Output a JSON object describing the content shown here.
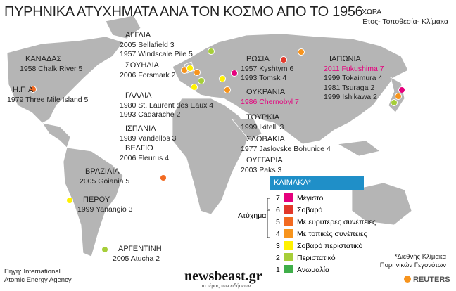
{
  "header": {
    "title": "ΠΥΡΗΝΙΚΑ ΑΤΥΧΗΜΑΤΑ ΑΝΑ ΤΟΝ ΚΟΣΜΟ ΑΠΟ ΤΟ 1956",
    "key": [
      "ΧΩΡΑ",
      "Έτος- Τοποθεσία- Κλίμακα"
    ]
  },
  "countries": [
    {
      "name": "ΚΑΝΑΔΑΣ",
      "events": [
        "1958 Chalk River 5"
      ]
    },
    {
      "name": "Η.Π.Α.",
      "events": [
        "1979 Three Mile Island 5"
      ]
    },
    {
      "name": "ΑΓΓΛΙΑ",
      "events": [
        "2005 Sellafield 3",
        "1957 Windscale Pile 5"
      ]
    },
    {
      "name": "ΣΟΥΗΔΙΑ",
      "events": [
        "2006 Forsmark 2"
      ]
    },
    {
      "name": "ΓΑΛΛΙΑ",
      "events": [
        "1980 St. Laurent des Eaux 4",
        "1993 Cadarache 2"
      ]
    },
    {
      "name": "ΙΣΠΑΝΙΑ",
      "events": [
        "1989 Vandellos 3"
      ]
    },
    {
      "name": "ΒΕΛΓΙΟ",
      "events": [
        "2006 Fleurus 4"
      ]
    },
    {
      "name": "ΡΩΣΙΑ",
      "events": [
        "1957 Kyshtym 6",
        "1993 Tomsk 4"
      ]
    },
    {
      "name": "ΟΥΚΡΑΝΙΑ",
      "events": [
        "1986 Chernobyl 7"
      ]
    },
    {
      "name": "ΤΟΥΡΚΙΑ",
      "events": [
        "1999 Ikitelli 3"
      ]
    },
    {
      "name": "ΣΛΟΒΑΚΙΑ",
      "events": [
        "1977 Jaslovske Bohunice 4"
      ]
    },
    {
      "name": "ΟΥΓΓΑΡΙΑ",
      "events": [
        "2003 Paks 3"
      ]
    },
    {
      "name": "ΙΑΠΩΝΙΑ",
      "events": [
        "2011 Fukushima 7",
        "1999 Tokaimura 4",
        "1981 Tsuraga 2",
        "1999 Ishikawa 2"
      ]
    },
    {
      "name": "ΒΡΑΖΙΛΙΑ",
      "events": [
        "2005 Goiania 5"
      ]
    },
    {
      "name": "ΠΕΡΟΥ",
      "events": [
        "1999 Yanangio 3"
      ]
    },
    {
      "name": "ΑΡΓΕΝΤΙΝΗ",
      "events": [
        "2005 Atucha 2"
      ]
    }
  ],
  "scale": {
    "title": "ΚΛΙΜΑΚΑ*",
    "accident_label": "Ατύχημα",
    "levels": [
      {
        "level": 7,
        "label": "Μέγιστο",
        "color": "#e5007d"
      },
      {
        "level": 6,
        "label": "Σοβαρό",
        "color": "#e2382a"
      },
      {
        "level": 5,
        "label": "Με ευρύτερες συνέπειες",
        "color": "#f26a21"
      },
      {
        "level": 4,
        "label": "Με τοπικές συνέπειες",
        "color": "#f7941d"
      },
      {
        "level": 3,
        "label": "Σοβαρό περιστατικό",
        "color": "#fff100"
      },
      {
        "level": 2,
        "label": "Περιστατικό",
        "color": "#a6ce39"
      },
      {
        "level": 1,
        "label": "Ανωμαλία",
        "color": "#3fae49"
      }
    ],
    "note": [
      "*Διεθνής Κλίμακα",
      "Πυρηνικών Γεγονότων"
    ]
  },
  "source": [
    "Πηγή: International",
    "Atomic Energy Agency"
  ],
  "branding": {
    "site": "newsbeast.gr",
    "tagline": "το τέρας των ειδήσεων",
    "agency": "REUTERS"
  }
}
